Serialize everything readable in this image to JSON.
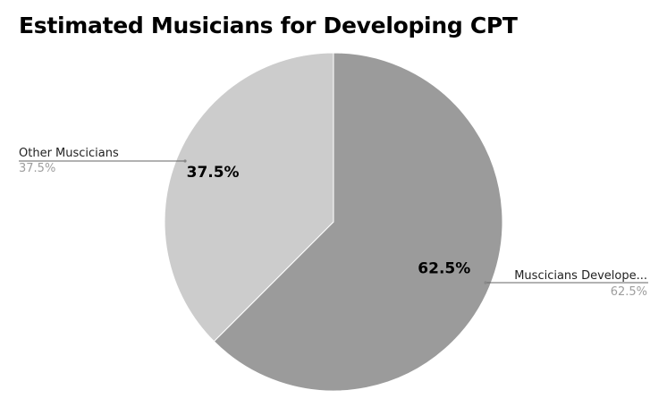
{
  "chart_data": {
    "type": "pie",
    "title": "Estimated Musicians for Developing CPT",
    "slices": [
      {
        "label": "Muscicians Develope...",
        "value": 62.5,
        "data_label": "62.5%",
        "callout_pct": "62.5%",
        "color": "#9b9b9b"
      },
      {
        "label": "Other Muscicians",
        "value": 37.5,
        "data_label": "37.5%",
        "callout_pct": "37.5%",
        "color": "#cccccc"
      }
    ],
    "start_angle_deg": 0,
    "direction": "clockwise",
    "slice_border_color": "#ffffff"
  }
}
